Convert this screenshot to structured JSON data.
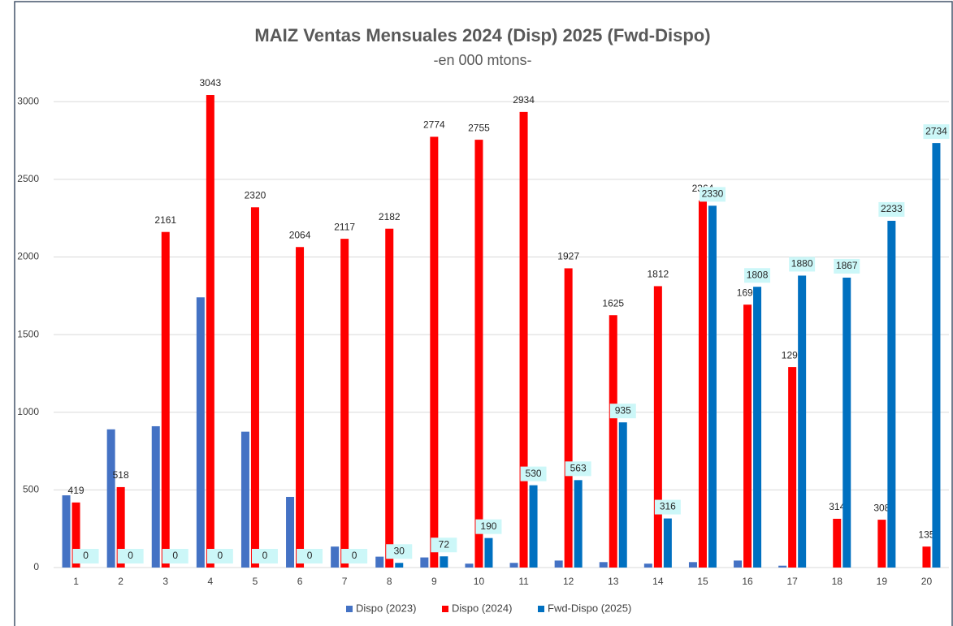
{
  "chart_data": {
    "type": "bar",
    "title": "MAIZ Ventas Mensuales  2024 (Disp) 2025 (Fwd-Dispo)",
    "subtitle": "-en 000 mtons-",
    "categories": [
      "1",
      "2",
      "3",
      "4",
      "5",
      "6",
      "7",
      "8",
      "9",
      "10",
      "11",
      "12",
      "13",
      "14",
      "15",
      "16",
      "17",
      "18",
      "19",
      "20"
    ],
    "series": [
      {
        "name": "Dispo (2023)",
        "color": "#4472c4",
        "data_labels": false,
        "values": [
          465,
          890,
          910,
          1740,
          875,
          455,
          135,
          70,
          65,
          25,
          30,
          45,
          35,
          25,
          35,
          45,
          12,
          null,
          null,
          null
        ]
      },
      {
        "name": "Dispo (2024)",
        "color": "#ff0000",
        "data_labels": true,
        "values": [
          419,
          518,
          2161,
          3043,
          2320,
          2064,
          2117,
          2182,
          2774,
          2755,
          2934,
          1927,
          1625,
          1812,
          2364,
          1693,
          1291,
          314,
          308,
          135
        ]
      },
      {
        "name": "Fwd-Dispo (2025)",
        "color": "#0070c0",
        "data_labels": true,
        "label_box": "#ccf7f8",
        "values": [
          0,
          0,
          0,
          0,
          0,
          0,
          0,
          30,
          72,
          190,
          530,
          563,
          935,
          316,
          2330,
          1808,
          1880,
          1867,
          2233,
          2734
        ]
      }
    ],
    "ylim": [
      0,
      3200
    ],
    "yticks": [
      0,
      500,
      1000,
      1500,
      2000,
      2500,
      3000
    ],
    "grid": true,
    "legend": "bottom"
  }
}
